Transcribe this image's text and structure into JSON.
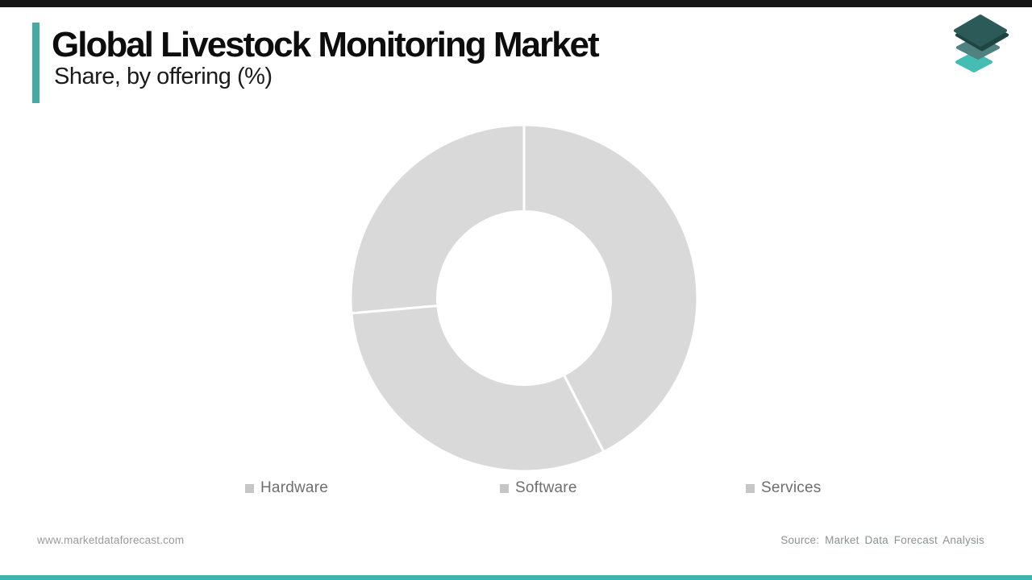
{
  "header": {
    "title": "Global Livestock Monitoring Market",
    "subtitle": "Share, by offering (%)",
    "accent_bar_color": "#48a8a4"
  },
  "top_bar": {
    "color": "#151515"
  },
  "bottom_bar": {
    "color": "#3fb3ad"
  },
  "logo": {
    "layer_colors": [
      "#45bcb4",
      "#4f8280",
      "#2c5a58"
    ],
    "edge_color": "#1f4542"
  },
  "chart_data": {
    "type": "pie",
    "variant": "donut",
    "title": "Global Livestock Monitoring Market",
    "subtitle": "Share, by offering (%)",
    "categories": [
      "Hardware",
      "Software",
      "Services"
    ],
    "values": [
      42.4,
      31.2,
      26.4
    ],
    "unit": "%",
    "start_angle_deg": 0,
    "clockwise": true,
    "inner_radius_ratio": 0.5,
    "segment_colors": [
      "#d9d9d9",
      "#d9d9d9",
      "#d9d9d9"
    ],
    "separator_color": "#ffffff",
    "separator_width": 3,
    "legend_position": "bottom"
  },
  "legend": {
    "marker_color": "#c6c6c6"
  },
  "footer": {
    "website": "www.marketdataforecast.com",
    "source": "Source: Market Data Forecast Analysis"
  }
}
